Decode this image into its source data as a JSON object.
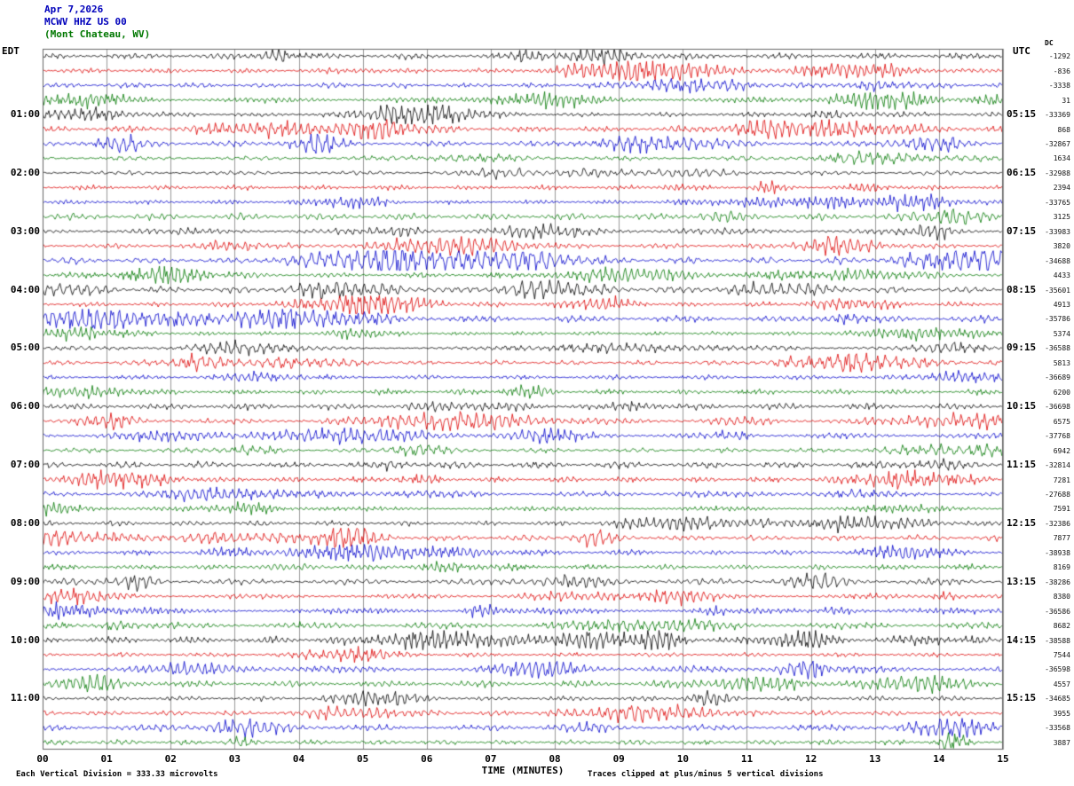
{
  "header": {
    "date": "Apr 7,2026",
    "station": "MCWV HHZ US 00",
    "location": "(Mont Chateau, WV)"
  },
  "axes": {
    "left_label": "EDT",
    "right_label": "UTC",
    "dc_label": "DC",
    "x_title": "TIME (MINUTES)",
    "x_ticks": [
      "00",
      "01",
      "02",
      "03",
      "04",
      "05",
      "06",
      "07",
      "08",
      "09",
      "10",
      "11",
      "12",
      "13",
      "14",
      "15"
    ]
  },
  "left_times": [
    "01:00",
    "02:00",
    "03:00",
    "04:00",
    "05:00",
    "06:00",
    "07:00",
    "08:00",
    "09:00",
    "10:00",
    "11:00"
  ],
  "right_times": [
    "05:15",
    "06:15",
    "07:15",
    "08:15",
    "09:15",
    "10:15",
    "11:15",
    "12:15",
    "13:15",
    "14:15",
    "15:15"
  ],
  "dc_values": [
    "-1292",
    "-836",
    "-3338",
    "31",
    "-33369",
    "868",
    "-32867",
    "1634",
    "-32988",
    "2394",
    "-33765",
    "3125",
    "-33983",
    "3820",
    "-34688",
    "4433",
    "-35601",
    "4913",
    "-35786",
    "5374",
    "-36588",
    "5813",
    "-36689",
    "6200",
    "-36698",
    "6575",
    "-37768",
    "6942",
    "-32814",
    "7281",
    "-27688",
    "7591",
    "-32386",
    "7877",
    "-38938",
    "8169",
    "-38286",
    "8380",
    "-36586",
    "8682",
    "-38588",
    "7544",
    "-36598",
    "4557",
    "-34685",
    "3955",
    "-33568",
    "3887"
  ],
  "footer": {
    "scale_note": "Each Vertical Division =  333.33 microvolts",
    "clip_note": "Traces clipped at plus/minus 5 vertical divisions"
  },
  "colors": {
    "trace_cycle": [
      "#000000",
      "#dd0000",
      "#0000cc",
      "#007700"
    ],
    "header_text": "#0000bb",
    "location_text": "#007700",
    "grid": "#999999",
    "frame": "#666666"
  },
  "chart_data": {
    "type": "line",
    "subtype": "helicorder-seismogram",
    "title": "MCWV HHZ US 00 (Mont Chateau, WV) Apr 7,2026",
    "xlabel": "TIME (MINUTES)",
    "x_range": [
      0,
      15
    ],
    "rows": 48,
    "minutes_per_row": 15,
    "first_row_start_edt": "00:00",
    "hour_labels_edt": [
      "01:00",
      "02:00",
      "03:00",
      "04:00",
      "05:00",
      "06:00",
      "07:00",
      "08:00",
      "09:00",
      "10:00",
      "11:00"
    ],
    "hour_labels_utc": [
      "05:15",
      "06:15",
      "07:15",
      "08:15",
      "09:15",
      "10:15",
      "11:15",
      "12:15",
      "13:15",
      "14:15",
      "15:15"
    ],
    "trace_color_cycle": [
      "black",
      "red",
      "blue",
      "green"
    ],
    "grid": "vertical gridline each minute",
    "legend_position": "none",
    "scale": "Each Vertical Division = 333.33 microvolts",
    "clipping": "Traces clipped at plus/minus 5 vertical divisions"
  }
}
